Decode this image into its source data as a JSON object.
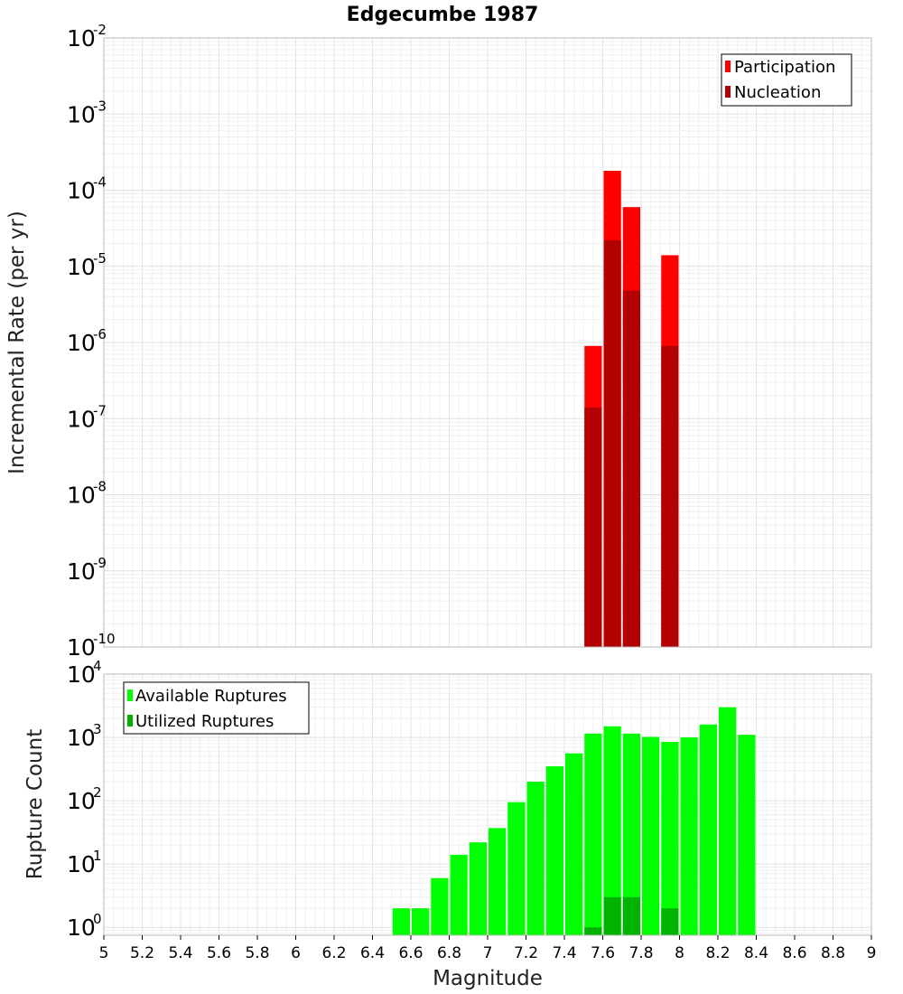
{
  "chart_data": [
    {
      "type": "bar",
      "title": "Edgecumbe 1987",
      "xlabel": "Magnitude",
      "ylabel": "Incremental Rate (per yr)",
      "yscale": "log",
      "xlim": [
        5,
        9
      ],
      "ylim": [
        1e-10,
        0.01
      ],
      "y_tick_exponents": [
        "-10",
        "-9",
        "-8",
        "-7",
        "-6",
        "-5",
        "-4",
        "-3",
        "-2"
      ],
      "bin_width": 0.1,
      "grid": true,
      "legend_position": "top-right",
      "series": [
        {
          "name": "Participation",
          "color": "#ff0000",
          "x": [
            7.55,
            7.65,
            7.75,
            7.95
          ],
          "values": [
            9e-07,
            0.00018,
            6e-05,
            1.4e-05
          ]
        },
        {
          "name": "Nucleation",
          "color": "#b30000",
          "x": [
            7.55,
            7.65,
            7.75,
            7.95
          ],
          "values": [
            1.4e-07,
            2.2e-05,
            4.8e-06,
            9e-07
          ]
        }
      ]
    },
    {
      "type": "bar",
      "xlabel": "Magnitude",
      "ylabel": "Rupture Count",
      "yscale": "log",
      "xlim": [
        5,
        9
      ],
      "ylim": [
        0.75,
        10000
      ],
      "y_tick_exponents": [
        "0",
        "1",
        "2",
        "3",
        "4"
      ],
      "x_ticks": [
        "5",
        "5.2",
        "5.4",
        "5.6",
        "5.8",
        "6",
        "6.2",
        "6.4",
        "6.6",
        "6.8",
        "7",
        "7.2",
        "7.4",
        "7.6",
        "7.8",
        "8",
        "8.2",
        "8.4",
        "8.6",
        "8.8",
        "9"
      ],
      "bin_width": 0.1,
      "grid": true,
      "legend_position": "top-left",
      "series": [
        {
          "name": "Available Ruptures",
          "color": "#00ff00",
          "x": [
            6.55,
            6.65,
            6.75,
            6.85,
            6.95,
            7.05,
            7.15,
            7.25,
            7.35,
            7.45,
            7.55,
            7.65,
            7.75,
            7.85,
            7.95,
            8.05,
            8.15,
            8.25,
            8.35
          ],
          "values": [
            2,
            2,
            6,
            14,
            22,
            37,
            95,
            200,
            350,
            560,
            1150,
            1500,
            1150,
            1020,
            850,
            1000,
            1600,
            3000,
            1100
          ]
        },
        {
          "name": "Utilized Ruptures",
          "color": "#00b300",
          "x": [
            7.55,
            7.65,
            7.75,
            7.95
          ],
          "values": [
            1,
            3,
            3,
            2
          ]
        }
      ]
    }
  ]
}
